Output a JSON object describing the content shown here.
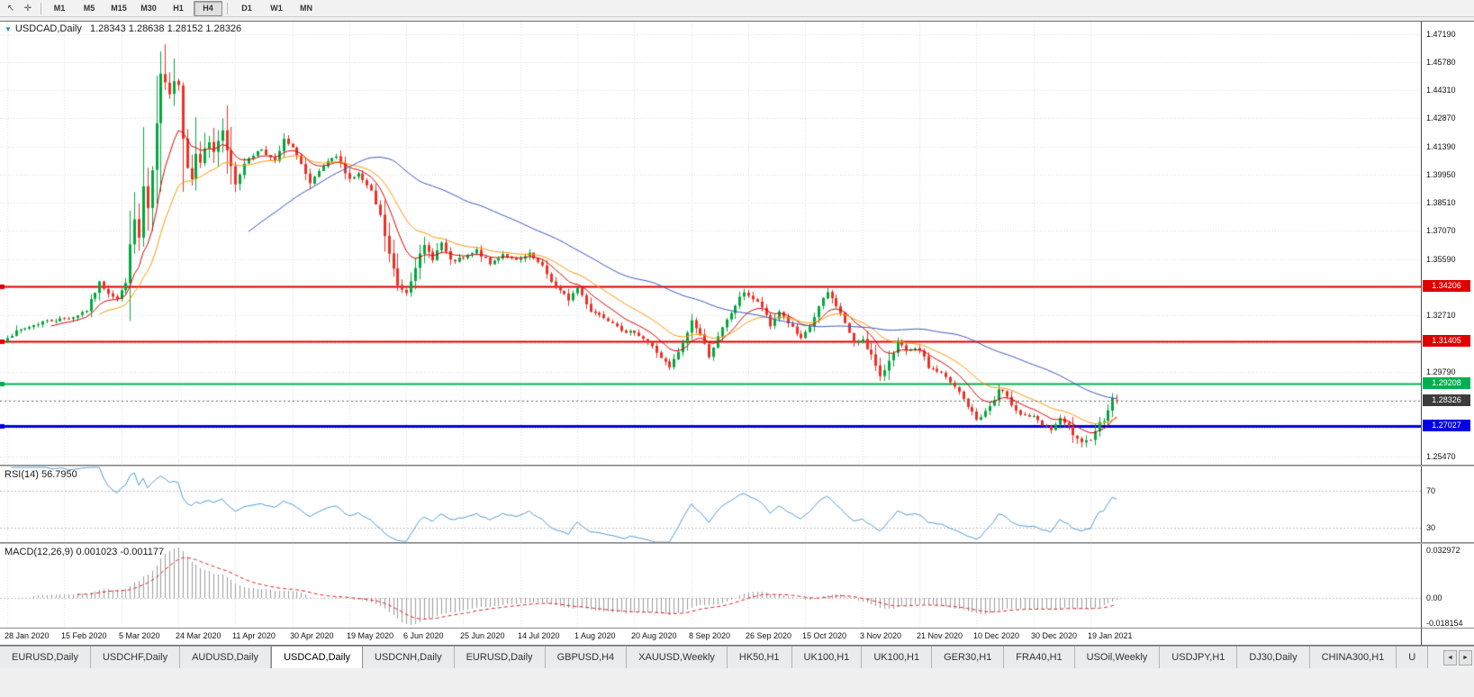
{
  "toolbar": {
    "icons": [
      {
        "name": "cursor",
        "glyph": "↖"
      },
      {
        "name": "crosshair",
        "glyph": "✛"
      }
    ],
    "timeframes": [
      "M1",
      "M5",
      "M15",
      "M30",
      "H1",
      "H4",
      "D1",
      "W1",
      "MN"
    ],
    "active_timeframe": "H4",
    "separator_after_index": 5
  },
  "chart": {
    "title_icon_glyph": "▼",
    "title_symbol": "USDCAD,Daily",
    "title_quotes": "1.28343 1.28638 1.28152 1.28326",
    "rsi_label": "RSI(14)",
    "rsi_value": "56.7950",
    "macd_label": "MACD(12,26,9)",
    "macd_values": "0.001023 -0.001177"
  },
  "price_axis": {
    "ticks": [
      "1.47190",
      "1.45780",
      "1.44310",
      "1.42870",
      "1.41390",
      "1.39950",
      "1.38510",
      "1.37070",
      "1.35590",
      "1.34150",
      "1.32710",
      "1.31270",
      "1.29790",
      "1.28350",
      "1.26910",
      "1.25470"
    ],
    "tags": [
      {
        "value": "1.34206",
        "price": 1.34206,
        "color": "#e00000",
        "type": "resistance-line-upper"
      },
      {
        "value": "1.31405",
        "price": 1.31405,
        "color": "#e00000",
        "type": "resistance-line-lower"
      },
      {
        "value": "1.29208",
        "price": 1.29208,
        "color": "#00b050",
        "type": "support-line-green"
      },
      {
        "value": "1.28326",
        "price": 1.28326,
        "color": "#3c3c3c",
        "type": "current-price"
      },
      {
        "value": "1.27027",
        "price": 1.27027,
        "color": "#0000e0",
        "type": "support-line-blue"
      }
    ]
  },
  "macd_axis": {
    "top": "0.032972",
    "zero": "0.00",
    "bottom": "-0.018154"
  },
  "date_axis": {
    "labels": [
      "28 Jan 2020",
      "15 Feb 2020",
      "5 Mar 2020",
      "24 Mar 2020",
      "11 Apr 2020",
      "30 Apr 2020",
      "19 May 2020",
      "6 Jun 2020",
      "25 Jun 2020",
      "14 Jul 2020",
      "1 Aug 2020",
      "20 Aug 2020",
      "8 Sep 2020",
      "26 Sep 2020",
      "15 Oct 2020",
      "3 Nov 2020",
      "21 Nov 2020",
      "10 Dec 2020",
      "30 Dec 2020",
      "19 Jan 2021"
    ]
  },
  "tabbar": {
    "tabs": [
      "EURUSD,Daily",
      "USDCHF,Daily",
      "AUDUSD,Daily",
      "USDCAD,Daily",
      "USDCNH,Daily",
      "EURUSD,Daily",
      "GBPUSD,H4",
      "XAUUSD,Weekly",
      "HK50,H1",
      "UK100,H1",
      "UK100,H1",
      "GER30,H1",
      "FRA40,H1",
      "USOil,Weekly",
      "USDJPY,H1",
      "DJ30,Daily",
      "CHINA300,H1",
      "U"
    ],
    "active_index": 3,
    "scroll_left_glyph": "◄",
    "scroll_right_glyph": "►"
  },
  "chart_data": {
    "type": "candlestick",
    "symbol": "USDCAD",
    "timeframe": "Daily",
    "last_bar": {
      "open": 1.28343,
      "high": 1.28638,
      "low": 1.28152,
      "close": 1.28326
    },
    "bar_count": 254,
    "bars_per_label": 13,
    "price_range": {
      "min": 1.2503,
      "max": 1.4785
    },
    "up_color": "#00a83c",
    "down_color": "#ee3024",
    "grid_color": "#d9d9d9",
    "level_line_color": "#c0c0c0",
    "current_price": 1.28326,
    "current_price_line_color": "#707070",
    "hlines": [
      {
        "price": 1.34206,
        "color": "#e00000",
        "width": 2
      },
      {
        "price": 1.31405,
        "color": "#e00000",
        "width": 2
      },
      {
        "price": 1.29208,
        "color": "#00b050",
        "width": 2
      },
      {
        "price": 1.27027,
        "color": "#0000e0",
        "width": 3
      }
    ],
    "moving_averages": [
      {
        "name": "fast",
        "period": 10,
        "type": "ema",
        "color": "#d90000"
      },
      {
        "name": "medium",
        "period": 21,
        "type": "ema",
        "color": "#ff9500"
      },
      {
        "name": "slow",
        "period": 55,
        "type": "sma",
        "color": "#3a53c5"
      }
    ],
    "rsi": {
      "period": 14,
      "levels": [
        70,
        30
      ],
      "current": 56.795,
      "color": "#4f9bd5",
      "scale_min": 15,
      "scale_max": 95
    },
    "macd": {
      "fast": 12,
      "slow": 26,
      "signal": 9,
      "current_macd": 0.001023,
      "current_signal": -0.001177,
      "axis_max": 0.032972,
      "axis_min": -0.018154,
      "histogram_color": "#9b9b9b",
      "signal_color": "#e02020"
    },
    "close_anchors": [
      [
        0,
        1.3165
      ],
      [
        4,
        1.3205
      ],
      [
        8,
        1.324
      ],
      [
        12,
        1.3252
      ],
      [
        15,
        1.3265
      ],
      [
        18,
        1.33
      ],
      [
        21,
        1.344
      ],
      [
        23,
        1.339
      ],
      [
        25,
        1.336
      ],
      [
        26,
        1.34
      ],
      [
        27,
        1.3425
      ],
      [
        28,
        1.366
      ],
      [
        29,
        1.3745
      ],
      [
        30,
        1.367
      ],
      [
        31,
        1.393
      ],
      [
        32,
        1.3815
      ],
      [
        33,
        1.3995
      ],
      [
        34,
        1.4255
      ],
      [
        35,
        1.4495
      ],
      [
        36,
        1.4455
      ],
      [
        37,
        1.4435
      ],
      [
        38,
        1.4495
      ],
      [
        39,
        1.4465
      ],
      [
        40,
        1.4185
      ],
      [
        41,
        1.4055
      ],
      [
        42,
        1.3995
      ],
      [
        43,
        1.409
      ],
      [
        44,
        1.4065
      ],
      [
        45,
        1.4135
      ],
      [
        46,
        1.4165
      ],
      [
        47,
        1.409
      ],
      [
        48,
        1.416
      ],
      [
        49,
        1.4215
      ],
      [
        50,
        1.413
      ],
      [
        52,
        1.3965
      ],
      [
        55,
        1.4085
      ],
      [
        58,
        1.413
      ],
      [
        61,
        1.406
      ],
      [
        63,
        1.4175
      ],
      [
        66,
        1.4105
      ],
      [
        69,
        1.3945
      ],
      [
        72,
        1.404
      ],
      [
        75,
        1.409
      ],
      [
        78,
        1.3975
      ],
      [
        80,
        1.4
      ],
      [
        83,
        1.3905
      ],
      [
        85,
        1.378
      ],
      [
        87,
        1.3585
      ],
      [
        89,
        1.3425
      ],
      [
        91,
        1.3395
      ],
      [
        93,
        1.353
      ],
      [
        95,
        1.3625
      ],
      [
        97,
        1.3565
      ],
      [
        99,
        1.3645
      ],
      [
        101,
        1.355
      ],
      [
        104,
        1.3565
      ],
      [
        107,
        1.3605
      ],
      [
        110,
        1.3535
      ],
      [
        113,
        1.359
      ],
      [
        116,
        1.355
      ],
      [
        119,
        1.3585
      ],
      [
        122,
        1.352
      ],
      [
        125,
        1.3415
      ],
      [
        128,
        1.3355
      ],
      [
        130,
        1.3415
      ],
      [
        133,
        1.3295
      ],
      [
        136,
        1.3265
      ],
      [
        139,
        1.3225
      ],
      [
        141,
        1.3175
      ],
      [
        143,
        1.319
      ],
      [
        146,
        1.3135
      ],
      [
        149,
        1.3055
      ],
      [
        151,
        1.3
      ],
      [
        154,
        1.3125
      ],
      [
        156,
        1.3245
      ],
      [
        158,
        1.3175
      ],
      [
        160,
        1.3065
      ],
      [
        163,
        1.3205
      ],
      [
        166,
        1.3325
      ],
      [
        168,
        1.3395
      ],
      [
        170,
        1.3355
      ],
      [
        172,
        1.3315
      ],
      [
        174,
        1.3215
      ],
      [
        176,
        1.3295
      ],
      [
        178,
        1.3235
      ],
      [
        181,
        1.3145
      ],
      [
        183,
        1.3215
      ],
      [
        185,
        1.3315
      ],
      [
        187,
        1.339
      ],
      [
        189,
        1.3325
      ],
      [
        191,
        1.3235
      ],
      [
        193,
        1.3125
      ],
      [
        195,
        1.3155
      ],
      [
        197,
        1.3065
      ],
      [
        199,
        1.2945
      ],
      [
        201,
        1.3045
      ],
      [
        203,
        1.3135
      ],
      [
        205,
        1.3085
      ],
      [
        208,
        1.3095
      ],
      [
        210,
        1.3005
      ],
      [
        213,
        1.2975
      ],
      [
        215,
        1.2925
      ],
      [
        217,
        1.2875
      ],
      [
        219,
        1.2805
      ],
      [
        221,
        1.2735
      ],
      [
        223,
        1.2775
      ],
      [
        225,
        1.2835
      ],
      [
        226,
        1.289
      ],
      [
        227,
        1.2875
      ],
      [
        229,
        1.2815
      ],
      [
        231,
        1.2765
      ],
      [
        234,
        1.2745
      ],
      [
        236,
        1.2705
      ],
      [
        238,
        1.2685
      ],
      [
        240,
        1.2735
      ],
      [
        242,
        1.2695
      ],
      [
        244,
        1.2625
      ],
      [
        245,
        1.2605
      ],
      [
        246,
        1.2618
      ],
      [
        247,
        1.2645
      ],
      [
        248,
        1.2685
      ],
      [
        249,
        1.2715
      ],
      [
        250,
        1.274
      ],
      [
        251,
        1.2795
      ],
      [
        252,
        1.28343
      ],
      [
        253,
        1.28326
      ]
    ],
    "bar_overrides": {
      "36": {
        "h": 1.4668
      },
      "245": {
        "l": 1.2592
      },
      "252": {
        "h": 1.2872
      },
      "253": {
        "o": 1.28343,
        "h": 1.28638,
        "l": 1.28152,
        "c": 1.28326
      }
    }
  }
}
